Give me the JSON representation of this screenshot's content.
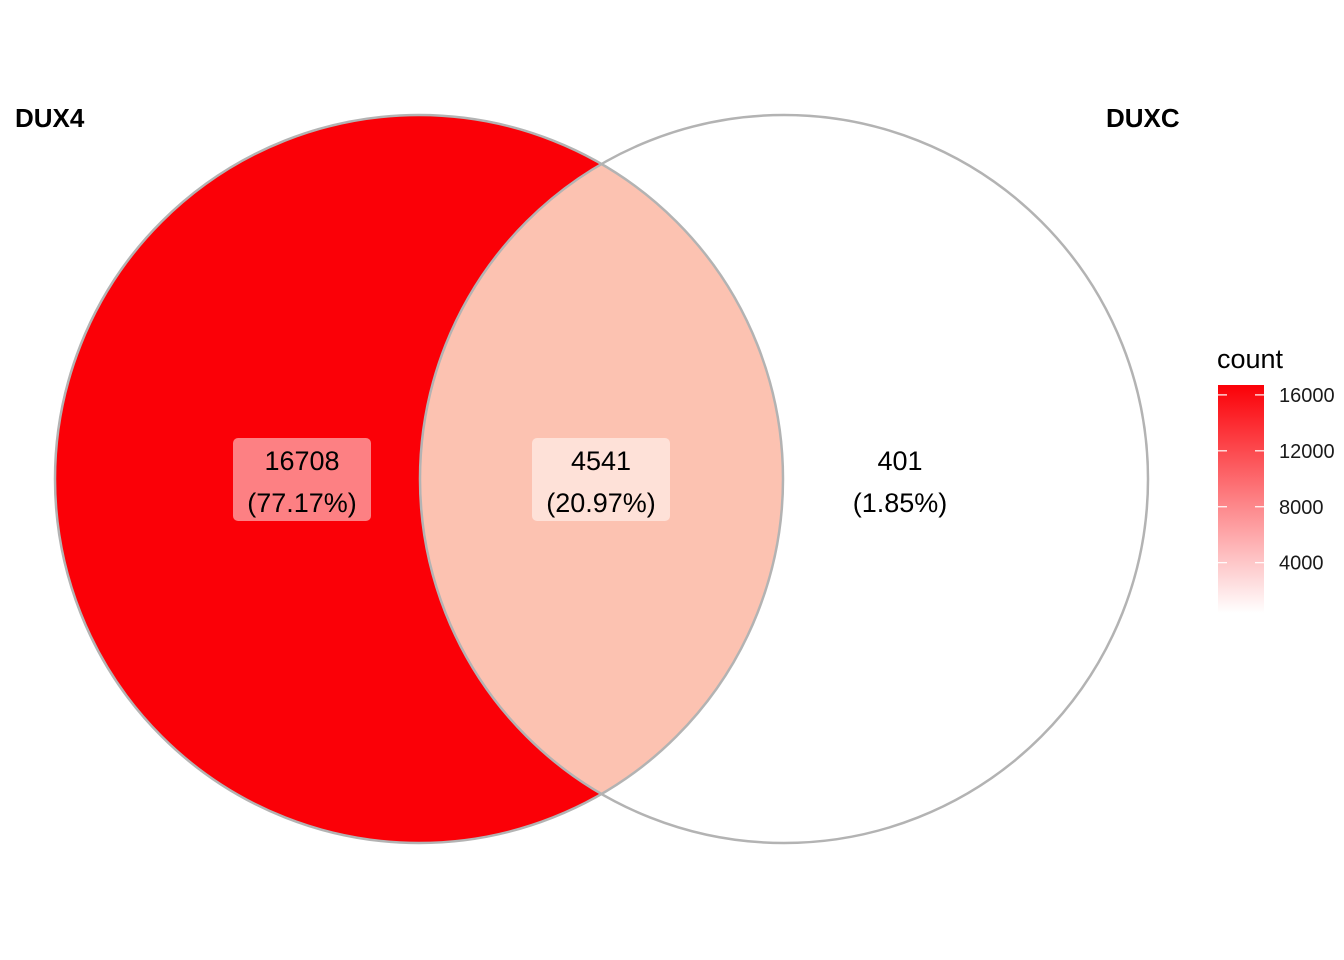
{
  "venn": {
    "sets": [
      {
        "label": "DUX4",
        "color": "#fb0007"
      },
      {
        "label": "DUXC",
        "color": "#ffffff"
      }
    ],
    "regions": [
      {
        "name": "DUX4-only",
        "count": "16708",
        "percent": "(77.17%)",
        "value": 16708,
        "fill": "#fb0007"
      },
      {
        "name": "DUX4-DUXC-overlap",
        "count": "4541",
        "percent": "(20.97%)",
        "value": 4541,
        "fill": "#fcc2b1"
      },
      {
        "name": "DUXC-only",
        "count": "401",
        "percent": "(1.85%)",
        "value": 401,
        "fill": "#ffffff"
      }
    ],
    "outline_color": "#b3b3b3"
  },
  "legend": {
    "title": "count",
    "ticks": [
      "16000",
      "12000",
      "8000",
      "4000"
    ],
    "tick_values": [
      16000,
      12000,
      8000,
      4000
    ],
    "range": [
      401,
      16708
    ],
    "gradient_low": "#ffffff",
    "gradient_high": "#fb0007"
  }
}
